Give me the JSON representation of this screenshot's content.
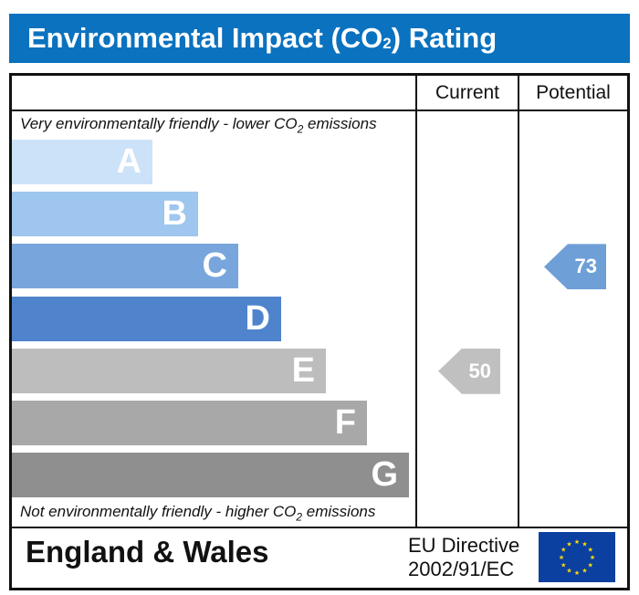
{
  "chart_data": {
    "type": "bar",
    "title": "Environmental Impact (CO2) Rating",
    "columns": [
      "Current",
      "Potential"
    ],
    "top_note": "Very environmentally friendly - lower CO2 emissions",
    "bottom_note": "Not environmentally friendly - higher CO2 emissions",
    "bands": [
      {
        "label": "A",
        "color": "#cce2f8"
      },
      {
        "label": "B",
        "color": "#9ec6ee"
      },
      {
        "label": "C",
        "color": "#78a6dc"
      },
      {
        "label": "D",
        "color": "#4f84cc"
      },
      {
        "label": "E",
        "color": "#bdbdbd"
      },
      {
        "label": "F",
        "color": "#a8a8a8"
      },
      {
        "label": "G",
        "color": "#8f8f8f"
      }
    ],
    "current": {
      "value": 50,
      "band": "E",
      "color": "#c0c0c0"
    },
    "potential": {
      "value": 73,
      "band": "C",
      "color": "#6e9fd6"
    }
  },
  "header": {
    "title_main": "Environmental Impact (CO",
    "title_sub": "2",
    "title_end": ") Rating",
    "color": "#0a72bf"
  },
  "notes": {
    "top_pre": "Very environmentally friendly - lower CO",
    "top_sub": "2",
    "top_post": " emissions",
    "bottom_pre": "Not environmentally friendly - higher CO",
    "bottom_sub": "2",
    "bottom_post": " emissions"
  },
  "footer": {
    "region": "England & Wales",
    "directive_line1": "EU Directive",
    "directive_line2": "2002/91/EC",
    "flag": "eu-flag-icon"
  }
}
